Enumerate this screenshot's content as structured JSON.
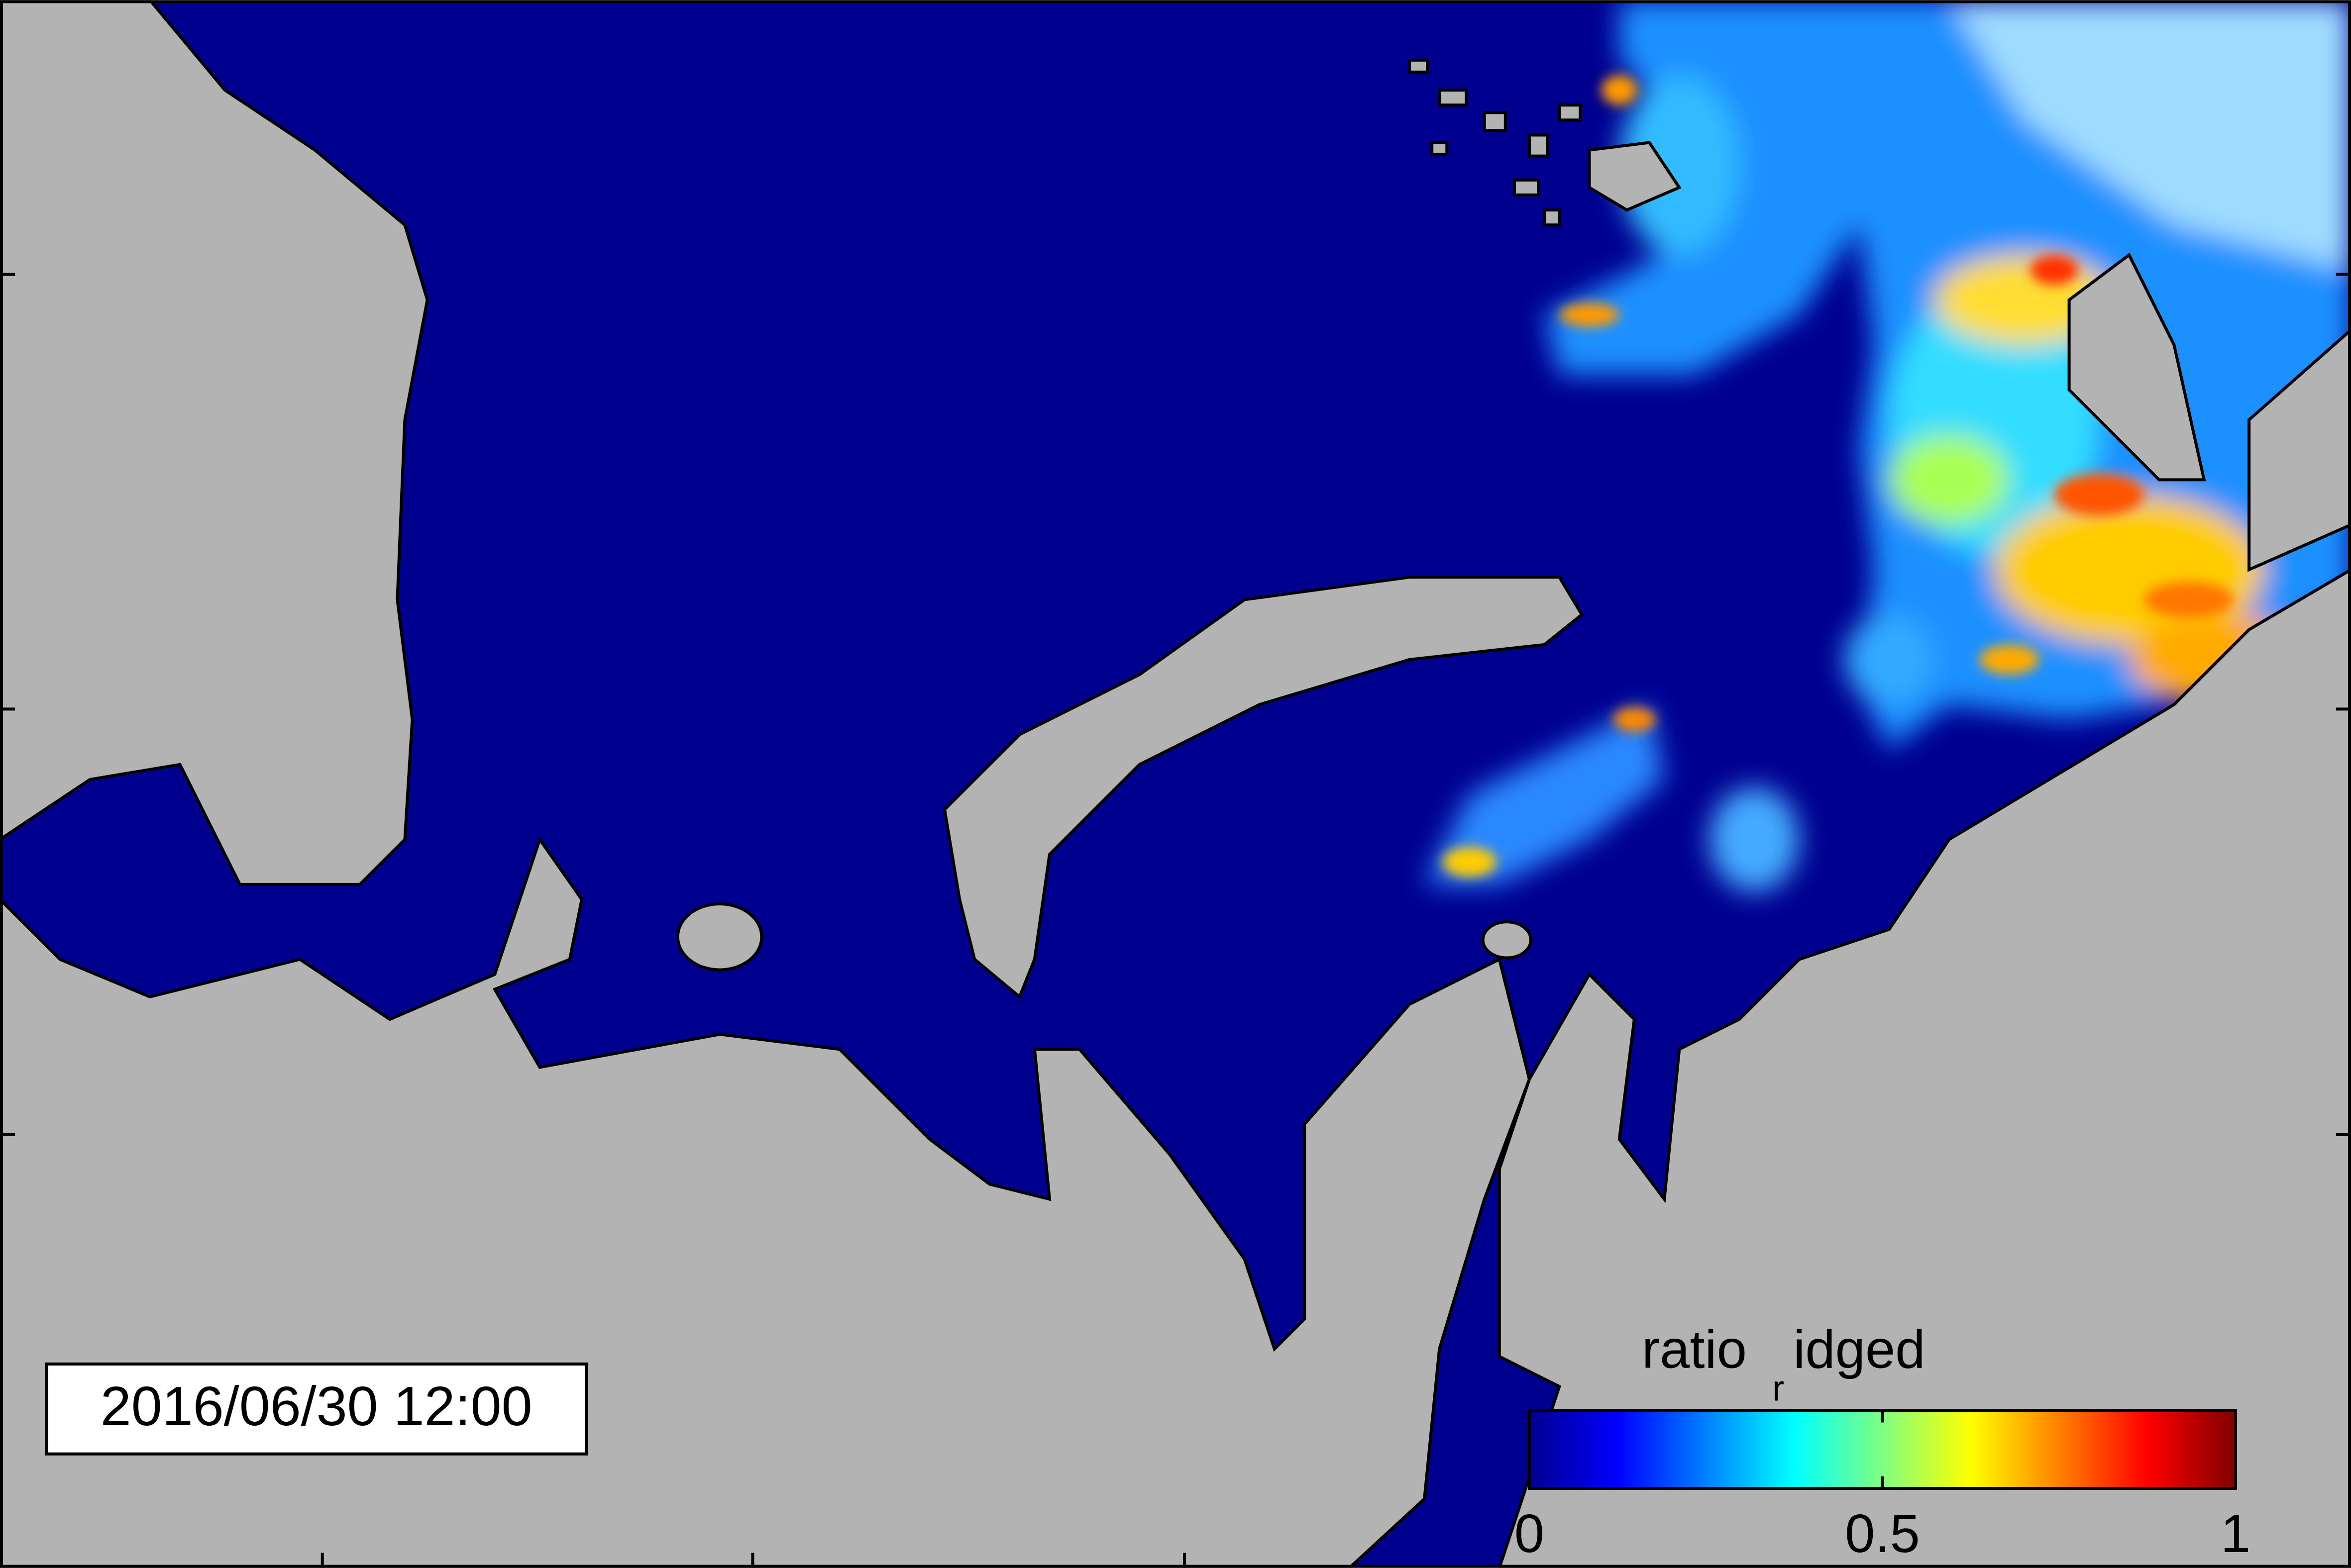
{
  "timestamp": "2016/06/30 12:00",
  "colorbar": {
    "title_parts": [
      "ratio",
      "r",
      "idged"
    ],
    "colormap": "jet",
    "lim": [
      0,
      1
    ],
    "ticks": [
      0,
      0.5,
      1
    ]
  }
}
